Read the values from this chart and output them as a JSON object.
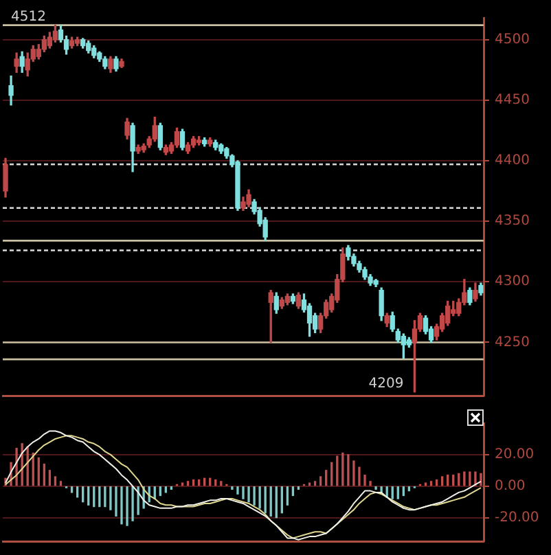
{
  "chart_data": [
    {
      "type": "candlestick",
      "categories": [
        null,
        null,
        null,
        null,
        null,
        null,
        null,
        null,
        null,
        null,
        null,
        null,
        null,
        null,
        null,
        null,
        null,
        null,
        null,
        null,
        null,
        null,
        null,
        null,
        null,
        null,
        null,
        null,
        null,
        null,
        null,
        null,
        null,
        null,
        null,
        null,
        null,
        null,
        null,
        null,
        null,
        null,
        null,
        null,
        null,
        null,
        null,
        null,
        null,
        null,
        null,
        null,
        null,
        null,
        null,
        null,
        null,
        null,
        null,
        null,
        null,
        null,
        null,
        null,
        null,
        null,
        null,
        null,
        null,
        null,
        null,
        null,
        null,
        null,
        null,
        null,
        null,
        null,
        null,
        null,
        null,
        null,
        null,
        null,
        null,
        null,
        null
      ],
      "ohlc": [
        [
          4375,
          4402,
          4370,
          4397
        ],
        [
          4462,
          4470,
          4446,
          4454
        ],
        [
          4478,
          4489,
          4473,
          4484
        ],
        [
          4486,
          4490,
          4473,
          4478
        ],
        [
          4475,
          4489,
          4470,
          4484
        ],
        [
          4484,
          4495,
          4482,
          4492
        ],
        [
          4486,
          4496,
          4484,
          4492
        ],
        [
          4492,
          4503,
          4490,
          4500
        ],
        [
          4495,
          4506,
          4493,
          4502
        ],
        [
          4500,
          4512,
          4498,
          4507
        ],
        [
          4508,
          4512,
          4498,
          4500
        ],
        [
          4500,
          4503,
          4488,
          4492
        ],
        [
          4495,
          4502,
          4493,
          4499
        ],
        [
          4497,
          4502,
          4495,
          4500
        ],
        [
          4500,
          4501,
          4493,
          4495
        ],
        [
          4497,
          4499,
          4489,
          4491
        ],
        [
          4493,
          4495,
          4485,
          4487
        ],
        [
          4489,
          4490,
          4482,
          4484
        ],
        [
          4484,
          4486,
          4476,
          4478
        ],
        [
          4476,
          4486,
          4473,
          4484
        ],
        [
          4484,
          4486,
          4474,
          4476
        ],
        [
          4478,
          4484,
          4477,
          4482
        ],
        [
          4421,
          4435,
          4418,
          4432
        ],
        [
          4429,
          4431,
          4391,
          4408
        ],
        [
          4408,
          4413,
          4406,
          4411
        ],
        [
          4409,
          4414,
          4407,
          4412
        ],
        [
          4413,
          4420,
          4411,
          4418
        ],
        [
          4418,
          4436,
          4416,
          4429
        ],
        [
          4429,
          4431,
          4409,
          4411
        ],
        [
          4407,
          4413,
          4405,
          4411
        ],
        [
          4408,
          4415,
          4406,
          4413
        ],
        [
          4413,
          4427,
          4411,
          4424
        ],
        [
          4424,
          4426,
          4409,
          4411
        ],
        [
          4408,
          4415,
          4406,
          4413
        ],
        [
          4413,
          4420,
          4411,
          4418
        ],
        [
          4415,
          4420,
          4413,
          4417
        ],
        [
          4417,
          4419,
          4412,
          4414
        ],
        [
          4414,
          4419,
          4412,
          4417
        ],
        [
          4415,
          4417,
          4409,
          4411
        ],
        [
          4413,
          4414,
          4406,
          4408
        ],
        [
          4410,
          4411,
          4402,
          4404
        ],
        [
          4404,
          4405,
          4395,
          4397
        ],
        [
          4399,
          4400,
          4359,
          4361
        ],
        [
          4361,
          4370,
          4359,
          4366
        ],
        [
          4364,
          4376,
          4362,
          4372
        ],
        [
          4366,
          4368,
          4356,
          4358
        ],
        [
          4359,
          4361,
          4346,
          4348
        ],
        [
          4351,
          4353,
          4334,
          4337
        ],
        [
          4283,
          4293,
          4250,
          4291
        ],
        [
          4288,
          4291,
          4274,
          4277
        ],
        [
          4280,
          4287,
          4278,
          4285
        ],
        [
          4283,
          4290,
          4281,
          4288
        ],
        [
          4288,
          4290,
          4282,
          4284
        ],
        [
          4280,
          4291,
          4278,
          4289
        ],
        [
          4285,
          4290,
          4275,
          4277
        ],
        [
          4280,
          4282,
          4255,
          4266
        ],
        [
          4272,
          4274,
          4258,
          4261
        ],
        [
          4261,
          4274,
          4258,
          4272
        ],
        [
          4272,
          4285,
          4270,
          4283
        ],
        [
          4277,
          4290,
          4275,
          4288
        ],
        [
          4285,
          4306,
          4283,
          4302
        ],
        [
          4302,
          4328,
          4300,
          4323
        ],
        [
          4328,
          4330,
          4318,
          4321
        ],
        [
          4321,
          4323,
          4313,
          4315
        ],
        [
          4315,
          4317,
          4308,
          4310
        ],
        [
          4310,
          4312,
          4302,
          4304
        ],
        [
          4304,
          4306,
          4297,
          4299
        ],
        [
          4301,
          4302,
          4296,
          4298
        ],
        [
          4293,
          4295,
          4268,
          4272
        ],
        [
          4266,
          4274,
          4263,
          4272
        ],
        [
          4272,
          4275,
          4259,
          4261
        ],
        [
          4259,
          4261,
          4250,
          4252
        ],
        [
          4255,
          4257,
          4237,
          4248
        ],
        [
          4252,
          4254,
          4246,
          4248
        ],
        [
          4250,
          4268,
          4209,
          4261
        ],
        [
          4261,
          4274,
          4259,
          4272
        ],
        [
          4270,
          4272,
          4257,
          4259
        ],
        [
          4261,
          4263,
          4250,
          4252
        ],
        [
          4255,
          4265,
          4252,
          4263
        ],
        [
          4261,
          4274,
          4259,
          4272
        ],
        [
          4266,
          4284,
          4264,
          4280
        ],
        [
          4274,
          4284,
          4272,
          4277
        ],
        [
          4274,
          4286,
          4272,
          4283
        ],
        [
          4283,
          4302,
          4281,
          4291
        ],
        [
          4293,
          4295,
          4281,
          4283
        ],
        [
          4286,
          4299,
          4284,
          4293
        ],
        [
          4297,
          4299,
          4289,
          4291
        ]
      ],
      "colors": [
        "#c04848",
        "#80e0e0",
        "#c04848",
        "#80e0e0",
        "#c04848",
        "#c04848",
        "#c04848",
        "#c04848",
        "#c04848",
        "#c04848",
        "#80e0e0",
        "#80e0e0",
        "#c04848",
        "#c04848",
        "#80e0e0",
        "#80e0e0",
        "#80e0e0",
        "#80e0e0",
        "#80e0e0",
        "#c04848",
        "#80e0e0",
        "#c04848",
        "#c04848",
        "#80e0e0",
        "#c04848",
        "#c04848",
        "#c04848",
        "#c04848",
        "#80e0e0",
        "#c04848",
        "#c04848",
        "#c04848",
        "#80e0e0",
        "#c04848",
        "#c04848",
        "#c04848",
        "#80e0e0",
        "#c04848",
        "#80e0e0",
        "#80e0e0",
        "#80e0e0",
        "#80e0e0",
        "#80e0e0",
        "#c04848",
        "#c04848",
        "#80e0e0",
        "#80e0e0",
        "#80e0e0",
        "#c04848",
        "#80e0e0",
        "#c04848",
        "#c04848",
        "#80e0e0",
        "#c04848",
        "#80e0e0",
        "#80e0e0",
        "#80e0e0",
        "#c04848",
        "#c04848",
        "#c04848",
        "#c04848",
        "#c04848",
        "#80e0e0",
        "#80e0e0",
        "#80e0e0",
        "#80e0e0",
        "#80e0e0",
        "#80e0e0",
        "#80e0e0",
        "#c04848",
        "#80e0e0",
        "#80e0e0",
        "#80e0e0",
        "#80e0e0",
        "#c04848",
        "#c04848",
        "#80e0e0",
        "#80e0e0",
        "#c04848",
        "#c04848",
        "#c04848",
        "#c04848",
        "#c04848",
        "#c04848",
        "#80e0e0",
        "#c04848",
        "#80e0e0"
      ],
      "ylim": [
        4206,
        4518
      ],
      "yticks": [
        4250,
        4300,
        4350,
        4400,
        4450,
        4500
      ],
      "grid": "y",
      "ref_lines": [
        {
          "axis": "y",
          "value": 4512,
          "label": "4512",
          "color": "#c8c0a0",
          "line_style": "solid"
        },
        {
          "axis": "y",
          "value": 4397,
          "label": null,
          "color": "#d8d8d8",
          "line_style": "dashed"
        },
        {
          "axis": "y",
          "value": 4361,
          "label": null,
          "color": "#d8d8d8",
          "line_style": "dashed"
        },
        {
          "axis": "y",
          "value": 4334,
          "label": null,
          "color": "#c8c0a0",
          "line_style": "solid"
        },
        {
          "axis": "y",
          "value": 4326,
          "label": null,
          "color": "#d8d8d8",
          "line_style": "dashed"
        },
        {
          "axis": "y",
          "value": 4250,
          "label": null,
          "color": "#c8c0a0",
          "line_style": "solid"
        },
        {
          "axis": "y",
          "value": 4236,
          "label": null,
          "color": "#c8c0a0",
          "line_style": "solid"
        }
      ],
      "annotations": [
        "4209"
      ]
    },
    {
      "type": "bar",
      "categories": [
        null,
        null,
        null,
        null,
        null,
        null,
        null,
        null,
        null,
        null,
        null,
        null,
        null,
        null,
        null,
        null,
        null,
        null,
        null,
        null,
        null,
        null,
        null,
        null,
        null,
        null,
        null,
        null,
        null,
        null,
        null,
        null,
        null,
        null,
        null,
        null,
        null,
        null,
        null,
        null,
        null,
        null,
        null,
        null,
        null,
        null,
        null,
        null,
        null,
        null,
        null,
        null,
        null,
        null,
        null,
        null,
        null,
        null,
        null,
        null,
        null,
        null,
        null,
        null,
        null,
        null,
        null,
        null,
        null,
        null,
        null,
        null,
        null,
        null,
        null,
        null,
        null,
        null,
        null,
        null,
        null,
        null,
        null,
        null,
        null,
        null,
        null
      ],
      "series": [
        {
          "type": "bar",
          "colors": [
            "#c05050",
            "#c05050",
            "#c05050",
            "#c05050",
            "#c05050",
            "#c05050",
            "#c05050",
            "#c05050",
            "#c05050",
            "#c05050",
            "#c05050",
            "#80c8c8",
            "#80c8c8",
            "#80c8c8",
            "#80c8c8",
            "#80c8c8",
            "#80c8c8",
            "#80c8c8",
            "#80c8c8",
            "#80c8c8",
            "#80c8c8",
            "#80c8c8",
            "#80c8c8",
            "#80c8c8",
            "#80c8c8",
            "#80c8c8",
            "#80c8c8",
            "#80c8c8",
            "#80c8c8",
            "#80c8c8",
            "#80c8c8",
            "#c05050",
            "#c05050",
            "#c05050",
            "#c05050",
            "#c05050",
            "#c05050",
            "#c05050",
            "#c05050",
            "#c05050",
            "#c05050",
            "#80c8c8",
            "#80c8c8",
            "#80c8c8",
            "#80c8c8",
            "#80c8c8",
            "#80c8c8",
            "#80c8c8",
            "#80c8c8",
            "#80c8c8",
            "#80c8c8",
            "#80c8c8",
            "#80c8c8",
            "#80c8c8",
            "#c05050",
            "#c05050",
            "#c05050",
            "#c05050",
            "#c05050",
            "#c05050",
            "#c05050",
            "#c05050",
            "#c05050",
            "#c05050",
            "#c05050",
            "#c05050",
            "#c05050",
            "#80c8c8",
            "#80c8c8",
            "#80c8c8",
            "#80c8c8",
            "#80c8c8",
            "#80c8c8",
            "#80c8c8",
            "#80c8c8",
            "#c05050",
            "#c05050",
            "#c05050",
            "#c05050",
            "#c05050",
            "#c05050",
            "#c05050",
            "#c05050",
            "#c05050",
            "#c05050",
            "#c05050",
            "#c05050"
          ],
          "values": [
            5,
            15,
            24,
            27,
            25,
            21,
            18,
            14,
            10,
            6,
            3,
            -1,
            -4,
            -7,
            -10,
            -12,
            -13,
            -13,
            -13,
            -15,
            -19,
            -24,
            -25,
            -22,
            -18,
            -14,
            -10,
            -8,
            -6,
            -4,
            -2,
            1,
            2,
            3,
            4,
            4,
            5,
            5,
            4,
            3,
            1,
            -2,
            -5,
            -8,
            -10,
            -12,
            -14,
            -17,
            -19,
            -20,
            -17,
            -12,
            -6,
            -2,
            1,
            2,
            3,
            6,
            10,
            15,
            19,
            21,
            20,
            16,
            12,
            7,
            3,
            -2,
            -5,
            -7,
            -8,
            -8,
            -6,
            -3,
            -1,
            1,
            2,
            3,
            4,
            6,
            7,
            7,
            8,
            9,
            9,
            9,
            8
          ]
        },
        {
          "type": "line",
          "color": "#f0f0e8",
          "values": [
            2,
            9,
            15,
            21,
            25,
            28,
            30,
            33,
            35,
            35,
            34,
            32,
            31,
            29,
            28,
            25,
            22,
            20,
            17,
            14,
            11,
            7,
            4,
            0,
            -4,
            -9,
            -12,
            -13,
            -14,
            -14,
            -14,
            -13,
            -13,
            -12,
            -12,
            -11,
            -10,
            -9,
            -9,
            -8,
            -8,
            -9,
            -10,
            -11,
            -13,
            -15,
            -17,
            -19,
            -22,
            -25,
            -29,
            -33,
            -33,
            -34,
            -33,
            -32,
            -32,
            -31,
            -30,
            -27,
            -24,
            -20,
            -16,
            -11,
            -7,
            -3,
            -3,
            -4,
            -4,
            -7,
            -10,
            -12,
            -14,
            -15,
            -15,
            -14,
            -13,
            -12,
            -11,
            -10,
            -8,
            -6,
            -4,
            -3,
            -1,
            1,
            3
          ]
        },
        {
          "type": "line",
          "color": "#e0d890",
          "values": [
            1,
            4,
            7,
            11,
            15,
            19,
            23,
            26,
            28,
            30,
            31,
            32,
            32,
            31,
            30,
            28,
            27,
            25,
            22,
            20,
            17,
            14,
            12,
            8,
            4,
            -2,
            -6,
            -8,
            -11,
            -12,
            -12,
            -13,
            -13,
            -13,
            -13,
            -12,
            -11,
            -11,
            -10,
            -9,
            -8,
            -8,
            -9,
            -10,
            -11,
            -13,
            -15,
            -18,
            -22,
            -25,
            -28,
            -31,
            -33,
            -32,
            -31,
            -30,
            -29,
            -29,
            -30,
            -27,
            -24,
            -21,
            -18,
            -15,
            -11,
            -8,
            -5,
            -4,
            -5,
            -7,
            -9,
            -11,
            -13,
            -14,
            -15,
            -14,
            -13,
            -12,
            -12,
            -11,
            -10,
            -9,
            -8,
            -7,
            -5,
            -3,
            -1
          ]
        }
      ],
      "ylim": [
        -35,
        40
      ],
      "yticks": [
        {
          "value": 20,
          "label": "20.00"
        },
        {
          "value": 0,
          "label": "0.00"
        },
        {
          "value": -20,
          "label": "-20.00"
        }
      ],
      "grid": "y"
    }
  ]
}
